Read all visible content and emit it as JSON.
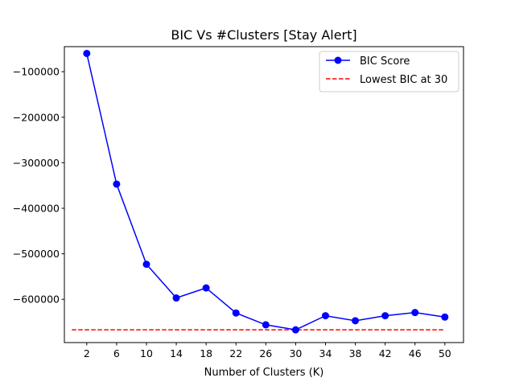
{
  "chart_data": {
    "type": "line",
    "title": "BIC Vs #Clusters [Stay Alert]",
    "xlabel": "Number of Clusters (K)",
    "ylabel": "",
    "x": [
      2,
      6,
      10,
      14,
      18,
      22,
      26,
      30,
      34,
      38,
      42,
      46,
      50
    ],
    "xticks": [
      "2",
      "6",
      "10",
      "14",
      "18",
      "22",
      "26",
      "30",
      "34",
      "38",
      "42",
      "46",
      "50"
    ],
    "yticks": [
      -100000,
      -200000,
      -300000,
      -400000,
      -500000,
      -600000
    ],
    "ytick_labels": [
      "−100000",
      "−200000",
      "−300000",
      "−400000",
      "−500000",
      "−600000"
    ],
    "xlim": [
      -1.0,
      52.5
    ],
    "ylim": [
      -695000,
      -45000
    ],
    "grid": false,
    "legend_position": "upper right",
    "series": [
      {
        "name": "BIC Score",
        "style": "solid-line-with-circle-markers",
        "color": "#0000ff",
        "values": [
          -60000,
          -347000,
          -523000,
          -597000,
          -575000,
          -630000,
          -656000,
          -667000,
          -636000,
          -647000,
          -636000,
          -629000,
          -639000
        ]
      },
      {
        "name": "Lowest BIC at 30",
        "style": "dashed-horizontal-line",
        "color": "#ff0000",
        "x_range": [
          0,
          50
        ],
        "value": -667000
      }
    ]
  }
}
